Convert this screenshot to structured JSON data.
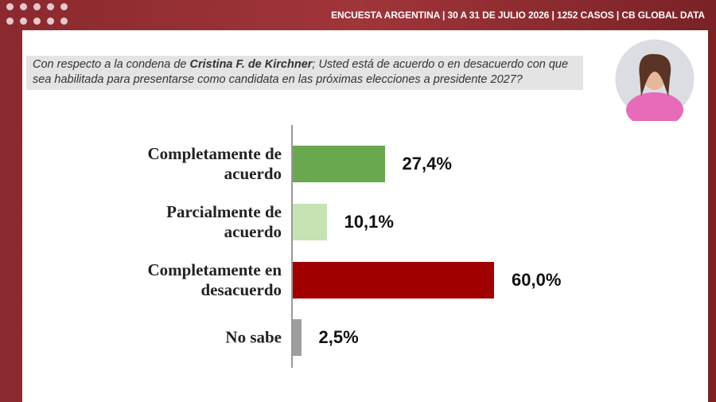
{
  "header": "ENCUESTA ARGENTINA | 30 A 31 DE JULIO 2026 | 1252 CASOS | CB GLOBAL DATA",
  "chart_data": {
    "type": "barh",
    "subtitle_parts": [
      "Con respecto a la condena de ",
      "Cristina F. de Kirchner",
      "; Usted está de acuerdo o en desacuerdo con que sea habilitada para presentarse como candidata en las próximas elecciones a presidente 2027?"
    ],
    "categories": [
      "Completamente de acuerdo",
      "Parcialmente de acuerdo",
      "Completamente en desacuerdo",
      "No sabe"
    ],
    "values": [
      27.4,
      10.1,
      60.0,
      2.5
    ],
    "value_labels": [
      "27,4%",
      "10,1%",
      "60,0%",
      "2,5%"
    ],
    "colors": [
      "#6aa84f",
      "#c5e3b3",
      "#a00000",
      "#9e9e9e"
    ]
  }
}
